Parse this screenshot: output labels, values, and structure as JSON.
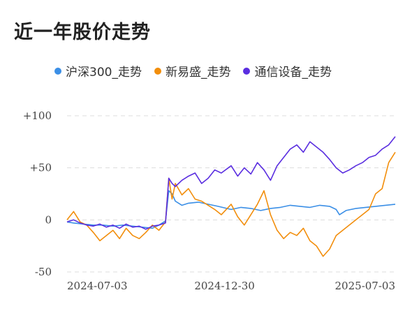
{
  "title": "近一年股价走势",
  "chart_data": {
    "type": "line",
    "title": "近一年股价走势",
    "xlabel": "",
    "ylabel": "",
    "ylim": [
      -50,
      100
    ],
    "y_ticks": [
      "+100",
      "+50",
      "0",
      "-50"
    ],
    "y_tick_values": [
      100,
      50,
      0,
      -50
    ],
    "x_tick_labels": [
      "2024-07-03",
      "2024-12-30",
      "2025-07-03"
    ],
    "x_tick_values": [
      0,
      0.48,
      1.0
    ],
    "grid": "horizontal-dashed",
    "legend_position": "top",
    "series": [
      {
        "name": "沪深300_走势",
        "color": "#3b8fe6",
        "x": [
          0,
          0.02,
          0.05,
          0.08,
          0.11,
          0.14,
          0.17,
          0.2,
          0.23,
          0.26,
          0.28,
          0.3,
          0.31,
          0.32,
          0.33,
          0.35,
          0.37,
          0.4,
          0.43,
          0.46,
          0.5,
          0.53,
          0.56,
          0.59,
          0.62,
          0.65,
          0.68,
          0.71,
          0.74,
          0.77,
          0.8,
          0.82,
          0.83,
          0.85,
          0.88,
          0.91,
          0.94,
          0.97,
          1.0
        ],
        "values": [
          -2,
          -3,
          -4,
          -5,
          -5,
          -6,
          -5,
          -6,
          -7,
          -8,
          -5,
          -1,
          28,
          25,
          18,
          14,
          16,
          17,
          15,
          13,
          10,
          12,
          11,
          9,
          11,
          12,
          14,
          13,
          12,
          14,
          13,
          10,
          5,
          9,
          11,
          12,
          13,
          14,
          15
        ]
      },
      {
        "name": "新易盛_走势",
        "color": "#f28e0c",
        "x": [
          0,
          0.02,
          0.04,
          0.06,
          0.08,
          0.1,
          0.12,
          0.14,
          0.16,
          0.18,
          0.2,
          0.22,
          0.24,
          0.26,
          0.28,
          0.3,
          0.31,
          0.32,
          0.33,
          0.35,
          0.37,
          0.39,
          0.41,
          0.43,
          0.45,
          0.47,
          0.5,
          0.52,
          0.54,
          0.56,
          0.58,
          0.6,
          0.62,
          0.64,
          0.66,
          0.68,
          0.7,
          0.72,
          0.74,
          0.76,
          0.78,
          0.8,
          0.82,
          0.84,
          0.86,
          0.88,
          0.9,
          0.92,
          0.94,
          0.96,
          0.98,
          1.0
        ],
        "values": [
          0,
          8,
          -2,
          -5,
          -12,
          -20,
          -15,
          -10,
          -18,
          -8,
          -15,
          -18,
          -12,
          -5,
          -10,
          -2,
          40,
          20,
          35,
          24,
          30,
          20,
          18,
          14,
          10,
          5,
          15,
          3,
          -5,
          5,
          15,
          28,
          5,
          -10,
          -18,
          -12,
          -15,
          -8,
          -20,
          -25,
          -35,
          -28,
          -15,
          -10,
          -5,
          0,
          5,
          10,
          25,
          30,
          55,
          65
        ]
      },
      {
        "name": "通信设备_走势",
        "color": "#5a2ee0",
        "x": [
          0,
          0.02,
          0.04,
          0.06,
          0.08,
          0.1,
          0.12,
          0.14,
          0.16,
          0.18,
          0.2,
          0.22,
          0.24,
          0.26,
          0.28,
          0.3,
          0.31,
          0.32,
          0.33,
          0.35,
          0.37,
          0.39,
          0.41,
          0.43,
          0.45,
          0.47,
          0.5,
          0.52,
          0.54,
          0.56,
          0.58,
          0.6,
          0.62,
          0.64,
          0.66,
          0.68,
          0.7,
          0.72,
          0.74,
          0.76,
          0.78,
          0.8,
          0.82,
          0.84,
          0.86,
          0.88,
          0.9,
          0.92,
          0.94,
          0.96,
          0.98,
          1.0
        ],
        "values": [
          -2,
          0,
          -3,
          -5,
          -6,
          -4,
          -7,
          -5,
          -8,
          -4,
          -7,
          -6,
          -9,
          -6,
          -5,
          -3,
          40,
          35,
          32,
          38,
          42,
          45,
          35,
          40,
          48,
          45,
          52,
          42,
          50,
          44,
          55,
          48,
          38,
          52,
          60,
          68,
          72,
          65,
          75,
          70,
          65,
          58,
          50,
          45,
          48,
          52,
          55,
          60,
          62,
          68,
          72,
          80
        ]
      }
    ]
  }
}
